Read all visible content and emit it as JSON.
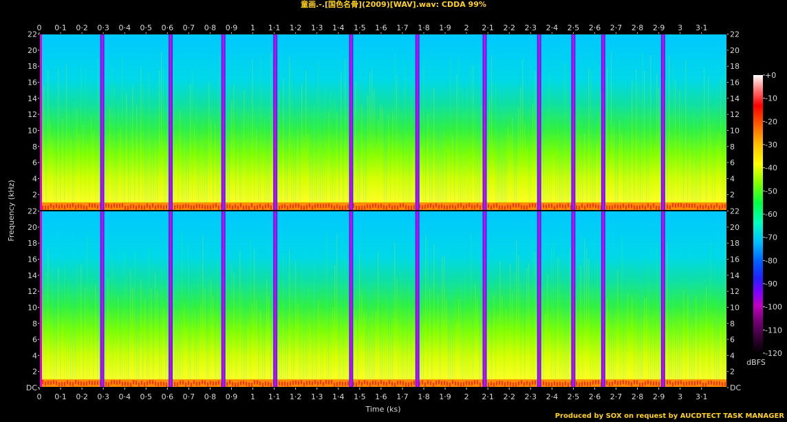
{
  "title": "童画.-.[国色名骨](2009)[WAV].wav: CDDA 99%",
  "credit": "Produced by SOX on request by AUCDTECT TASK MANAGER",
  "chart_data": {
    "type": "heatmap",
    "xlabel": "Time (ks)",
    "ylabel": "Frequency (kHz)",
    "xlim": [
      0,
      3.22
    ],
    "ylim": [
      0,
      22.05
    ],
    "x_ticks": [
      "0",
      "0·1",
      "0·2",
      "0·3",
      "0·4",
      "0·5",
      "0·6",
      "0·7",
      "0·8",
      "0·9",
      "1",
      "1·1",
      "1·2",
      "1·3",
      "1·4",
      "1·5",
      "1·6",
      "1·7",
      "1·8",
      "1·9",
      "2",
      "2·1",
      "2·2",
      "2·3",
      "2·4",
      "2·5",
      "2·6",
      "2·7",
      "2·8",
      "2·9",
      "3",
      "3·1"
    ],
    "y_ticks": [
      "DC",
      "2",
      "4",
      "6",
      "8",
      "10",
      "12",
      "14",
      "16",
      "18",
      "20",
      "22"
    ],
    "channels": 2,
    "track_boundaries_ks": [
      0.295,
      0.615,
      0.862,
      1.105,
      1.46,
      1.77,
      2.085,
      2.34,
      2.5,
      2.64,
      2.92
    ],
    "colorbar": {
      "label": "dBFS",
      "ticks": [
        "+0",
        "-10",
        "-20",
        "-30",
        "-40",
        "-50",
        "-60",
        "-70",
        "-80",
        "-90",
        "-100",
        "-110",
        "-120"
      ],
      "range": [
        -120,
        0
      ],
      "colors": [
        "#000000",
        "#3a003a",
        "#7a007a",
        "#c000c0",
        "#8000ff",
        "#2020ff",
        "#0060ff",
        "#00c0ff",
        "#00ffc0",
        "#00ff40",
        "#80ff00",
        "#ffff00",
        "#ffc000",
        "#ff6000",
        "#ff0000",
        "#ff8080",
        "#ffffff"
      ]
    }
  }
}
